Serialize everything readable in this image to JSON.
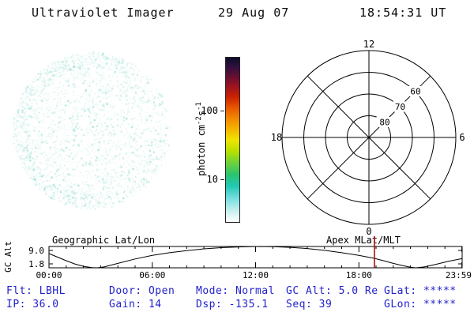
{
  "header": {
    "title": "Ultraviolet Imager",
    "date": "29 Aug 07",
    "time": "18:54:31 UT"
  },
  "disk": {
    "dot_count": 2600,
    "rim_dot_count": 700,
    "colors": [
      "#e7f5f3",
      "#dbf1ee",
      "#cdeee9",
      "#bfe9e3",
      "#d2f0e6",
      "#e3f4ef",
      "#c5ebe0",
      "#aee4da",
      "#9adfd4"
    ]
  },
  "colorbar": {
    "unit_prefix": "photon cm",
    "exp1": "-2",
    "unit_mid": "s",
    "exp2": "-1",
    "ticks": [
      "100",
      "10"
    ]
  },
  "polar": {
    "mlt_top": "12",
    "mlt_left": "18",
    "mlt_right": "6",
    "mlt_bottom": "0",
    "lat_60": "60",
    "lat_70": "70",
    "lat_80": "80"
  },
  "timeline": {
    "left_title": "Geographic Lat/Lon",
    "right_title": "Apex MLat/MLT",
    "y_label": "GC Alt",
    "y_top": "9.0",
    "y_bottom": "1.8",
    "x_ticks": [
      "00:00",
      "06:00",
      "12:00",
      "18:00",
      "23:59"
    ],
    "y_range": [
      1.8,
      9.0
    ],
    "marker_hour": 18.905,
    "marker_color": "#aa0000",
    "curve": [
      [
        0,
        6.6
      ],
      [
        0.5,
        5.4
      ],
      [
        1,
        4.2
      ],
      [
        1.5,
        3.1
      ],
      [
        2,
        2.3
      ],
      [
        2.5,
        1.85
      ],
      [
        2.8,
        1.8
      ],
      [
        3.2,
        2.1
      ],
      [
        4,
        3.3
      ],
      [
        5,
        4.8
      ],
      [
        6,
        6.0
      ],
      [
        7,
        6.9
      ],
      [
        8,
        7.6
      ],
      [
        9,
        8.2
      ],
      [
        10,
        8.6
      ],
      [
        11,
        8.85
      ],
      [
        12,
        9.0
      ],
      [
        13,
        8.95
      ],
      [
        14,
        8.7
      ],
      [
        15,
        8.3
      ],
      [
        16,
        7.7
      ],
      [
        17,
        6.9
      ],
      [
        18,
        6.0
      ],
      [
        18.9,
        5.0
      ],
      [
        19.5,
        4.1
      ],
      [
        20,
        3.3
      ],
      [
        20.5,
        2.6
      ],
      [
        21,
        2.0
      ],
      [
        21.3,
        1.8
      ],
      [
        21.8,
        2.1
      ],
      [
        22.5,
        3.0
      ],
      [
        23.2,
        4.0
      ],
      [
        23.98,
        4.9
      ]
    ]
  },
  "status": {
    "text_color": "#2222cc",
    "rows": [
      [
        "Flt: LBHL",
        "Door: Open",
        "Mode: Normal",
        "GC Alt: 5.0 Re",
        "GLat: *****"
      ],
      [
        "IP: 36.0",
        "Gain: 14",
        "Dsp: -135.1",
        "Seq: 39",
        "GLon: *****"
      ]
    ]
  }
}
